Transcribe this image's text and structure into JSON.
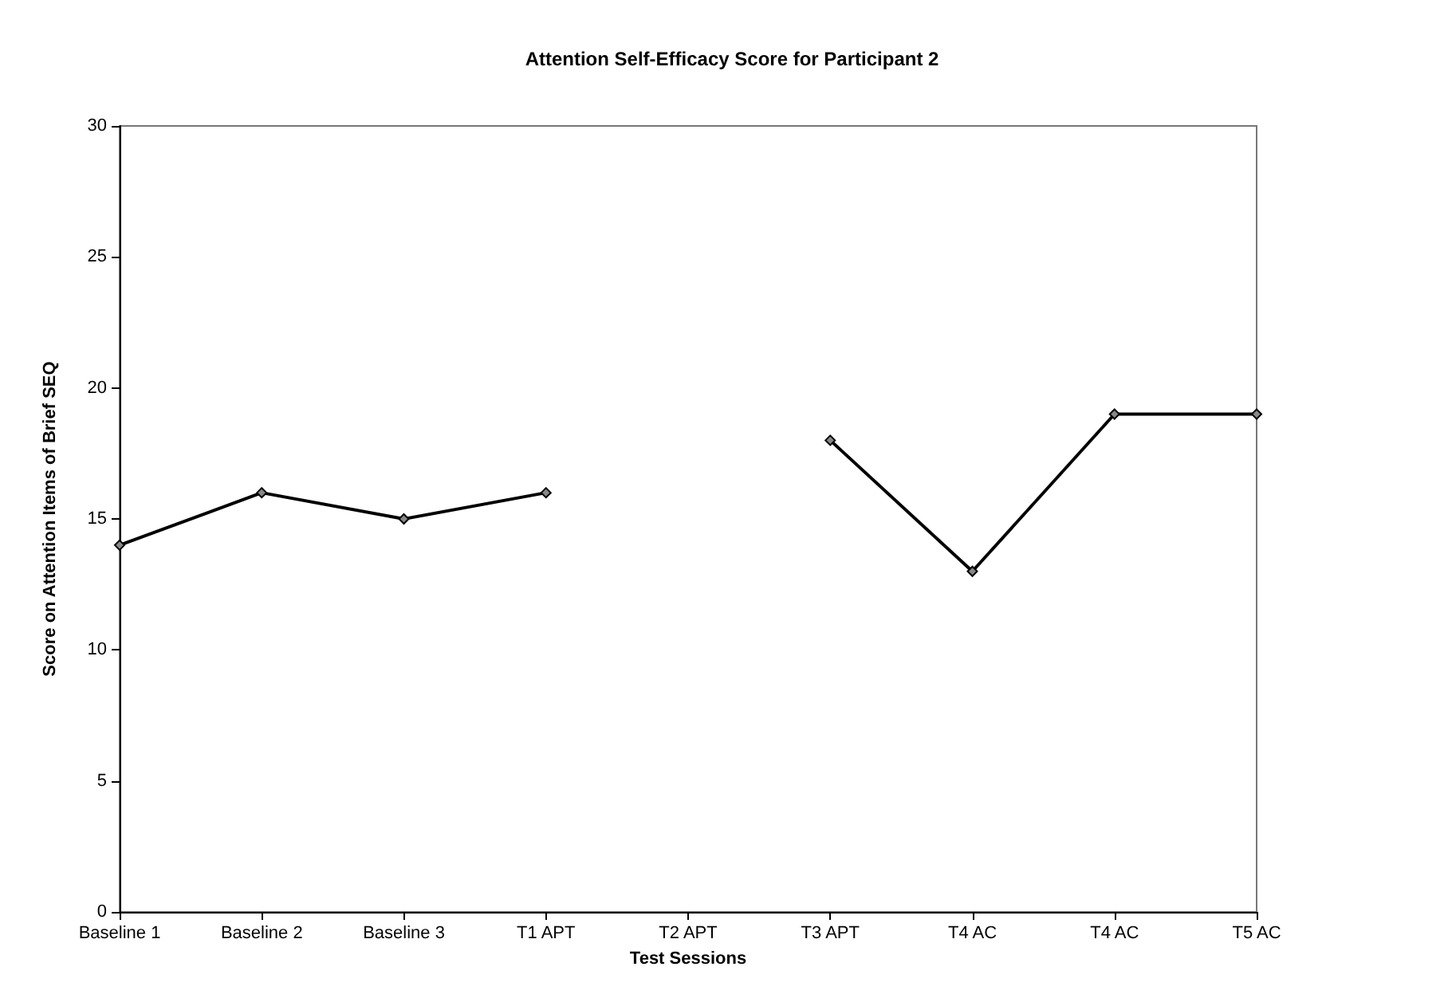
{
  "chart_data": {
    "type": "line",
    "title": "Attention Self-Efficacy Score for Participant 2",
    "xlabel": "Test Sessions",
    "ylabel": "Score on Attention Items of Brief SEQ",
    "categories": [
      "Baseline 1",
      "Baseline 2",
      "Baseline 3",
      "T1 APT",
      "T2 APT",
      "T3 APT",
      "T4 AC",
      "T4 AC",
      "T5 AC"
    ],
    "values": [
      14,
      16,
      15,
      16,
      null,
      18,
      13,
      19,
      19
    ],
    "color": "#000000",
    "ylim": [
      0,
      30
    ],
    "yticks": [
      0,
      5,
      10,
      15,
      20,
      25,
      30
    ],
    "grid": false,
    "marker": "diamond",
    "line_style": "solid"
  }
}
